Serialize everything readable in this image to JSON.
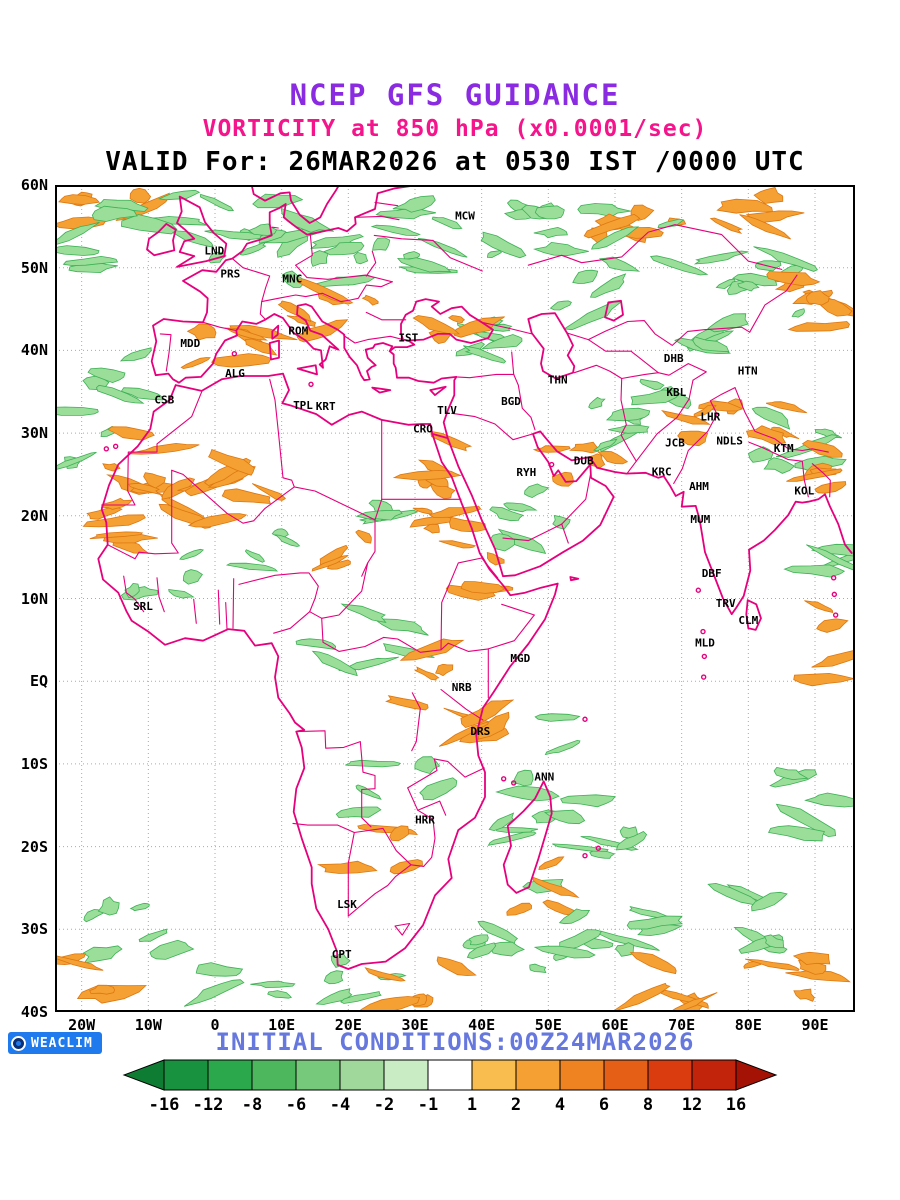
{
  "header": {
    "line1": "NCEP GFS GUIDANCE",
    "line2": "VORTICITY at 850 hPa (x0.0001/sec)",
    "line3": "VALID For: 26MAR2026 at 0530 IST /0000 UTC"
  },
  "footer": {
    "badge": "WEACLIM",
    "initial_conditions": "INITIAL CONDITIONS:00Z24MAR2026"
  },
  "colors": {
    "title_purple": "#8a2be2",
    "title_magenta": "#f5148c",
    "map_line_magenta": "#e6007e",
    "green_fill": "#9ade9a",
    "green_edge": "#3cb054",
    "orange_fill": "#f5a033",
    "orange_edge": "#dd7711",
    "grid_gray": "#aaaaaa",
    "initial_blue": "#6677dd",
    "badge_blue": "#1f7aed"
  },
  "map": {
    "lat_labels": [
      "60N",
      "50N",
      "40N",
      "30N",
      "20N",
      "10N",
      "EQ",
      "10S",
      "20S",
      "30S",
      "40S"
    ],
    "lon_labels": [
      "20W",
      "10W",
      "0",
      "10E",
      "20E",
      "30E",
      "40E",
      "50E",
      "60E",
      "70E",
      "80E",
      "90E"
    ],
    "cities": [
      {
        "c": "MCW",
        "lon": 37.5,
        "lat": 55.8
      },
      {
        "c": "LND",
        "lon": -0.1,
        "lat": 51.6
      },
      {
        "c": "PRS",
        "lon": 2.3,
        "lat": 48.8
      },
      {
        "c": "MNC",
        "lon": 11.6,
        "lat": 48.2
      },
      {
        "c": "ROM",
        "lon": 12.5,
        "lat": 41.9
      },
      {
        "c": "IST",
        "lon": 29.0,
        "lat": 41.1
      },
      {
        "c": "MDD",
        "lon": -3.7,
        "lat": 40.4
      },
      {
        "c": "ALG",
        "lon": 3.0,
        "lat": 36.8
      },
      {
        "c": "CSB",
        "lon": -7.6,
        "lat": 33.6
      },
      {
        "c": "TPL",
        "lon": 13.2,
        "lat": 32.9
      },
      {
        "c": "KRT",
        "lon": 16.6,
        "lat": 32.8
      },
      {
        "c": "TLV",
        "lon": 34.8,
        "lat": 32.3
      },
      {
        "c": "CRO",
        "lon": 31.2,
        "lat": 30.1
      },
      {
        "c": "BGD",
        "lon": 44.4,
        "lat": 33.4
      },
      {
        "c": "THN",
        "lon": 51.4,
        "lat": 36.0
      },
      {
        "c": "DHB",
        "lon": 68.8,
        "lat": 38.6
      },
      {
        "c": "HTN",
        "lon": 79.9,
        "lat": 37.1
      },
      {
        "c": "KBL",
        "lon": 69.2,
        "lat": 34.5
      },
      {
        "c": "LHR",
        "lon": 74.3,
        "lat": 31.5
      },
      {
        "c": "JCB",
        "lon": 69.0,
        "lat": 28.4
      },
      {
        "c": "NDLS",
        "lon": 77.2,
        "lat": 28.6
      },
      {
        "c": "KTM",
        "lon": 85.3,
        "lat": 27.7
      },
      {
        "c": "KRC",
        "lon": 67.0,
        "lat": 24.9
      },
      {
        "c": "AHM",
        "lon": 72.6,
        "lat": 23.1
      },
      {
        "c": "MUM",
        "lon": 72.8,
        "lat": 19.1
      },
      {
        "c": "KOL",
        "lon": 88.4,
        "lat": 22.6
      },
      {
        "c": "DBF",
        "lon": 74.5,
        "lat": 12.6
      },
      {
        "c": "TRV",
        "lon": 76.6,
        "lat": 9.0
      },
      {
        "c": "CLM",
        "lon": 80.0,
        "lat": 6.9
      },
      {
        "c": "MLD",
        "lon": 73.5,
        "lat": 4.2
      },
      {
        "c": "DUB",
        "lon": 55.3,
        "lat": 26.2
      },
      {
        "c": "RYH",
        "lon": 46.7,
        "lat": 24.8
      },
      {
        "c": "SRL",
        "lon": -10.8,
        "lat": 8.6
      },
      {
        "c": "MGD",
        "lon": 45.8,
        "lat": 2.3
      },
      {
        "c": "NRB",
        "lon": 37.0,
        "lat": -1.2
      },
      {
        "c": "DRS",
        "lon": 39.8,
        "lat": -6.5
      },
      {
        "c": "ANN",
        "lon": 49.4,
        "lat": -12.0
      },
      {
        "c": "HRR",
        "lon": 31.5,
        "lat": -17.2
      },
      {
        "c": "LSK",
        "lon": 19.8,
        "lat": -27.4
      },
      {
        "c": "CPT",
        "lon": 19.0,
        "lat": -33.5
      }
    ]
  },
  "colorbar": {
    "tick_labels": [
      "-16",
      "-12",
      "-8",
      "-6",
      "-4",
      "-2",
      "-1",
      "1",
      "2",
      "4",
      "6",
      "8",
      "12",
      "16"
    ],
    "segment_colors": [
      "#0e7d33",
      "#18923f",
      "#2ba74c",
      "#4db75e",
      "#76c87a",
      "#9fd89a",
      "#c9ecc4",
      "#ffffff",
      "#f8bd4e",
      "#f5a033",
      "#ef8221",
      "#e65f17",
      "#da3c10",
      "#c2230b",
      "#a31205"
    ]
  },
  "vorticity_features": [
    [
      -15,
      57,
      8,
      2.5,
      6,
      "o"
    ],
    [
      -20,
      51,
      4,
      4,
      4,
      "g"
    ],
    [
      -8,
      56,
      8,
      3,
      6,
      "g"
    ],
    [
      2,
      54,
      9,
      4,
      8,
      "g"
    ],
    [
      14,
      52,
      8,
      4,
      7,
      "g"
    ],
    [
      26,
      53,
      9,
      4,
      8,
      "g"
    ],
    [
      38,
      54,
      9,
      4,
      7,
      "g"
    ],
    [
      52,
      55,
      8,
      3,
      6,
      "g"
    ],
    [
      63,
      56,
      8,
      2.5,
      6,
      "o"
    ],
    [
      75,
      57,
      9,
      2.5,
      6,
      "o"
    ],
    [
      68,
      52,
      9,
      4,
      6,
      "g"
    ],
    [
      84,
      51,
      7,
      4,
      6,
      "g"
    ],
    [
      88,
      45,
      6,
      4,
      7,
      "o"
    ],
    [
      80,
      43,
      8,
      3,
      6,
      "g"
    ],
    [
      57,
      46,
      6,
      3,
      4,
      "g"
    ],
    [
      44,
      42,
      8,
      3,
      7,
      "g"
    ],
    [
      34,
      44,
      6,
      3,
      4,
      "o"
    ],
    [
      20,
      45,
      6,
      3,
      4,
      "o"
    ],
    [
      10,
      44,
      5,
      3,
      4,
      "o"
    ],
    [
      0,
      41,
      7,
      3,
      5,
      "o"
    ],
    [
      -14,
      37,
      5,
      4,
      5,
      "g"
    ],
    [
      -19,
      30,
      4,
      4,
      4,
      "g"
    ],
    [
      -11,
      27,
      5,
      4,
      6,
      "o"
    ],
    [
      -13,
      20,
      5,
      4,
      6,
      "o"
    ],
    [
      -4,
      21,
      7,
      4,
      8,
      "o"
    ],
    [
      5,
      24,
      5,
      3,
      4,
      "o"
    ],
    [
      -8,
      13,
      7,
      3,
      5,
      "g"
    ],
    [
      8,
      15,
      6,
      3,
      4,
      "g"
    ],
    [
      20,
      17,
      5,
      3,
      4,
      "o"
    ],
    [
      28,
      20,
      4,
      3,
      4,
      "g"
    ],
    [
      33,
      25,
      4,
      5,
      7,
      "o"
    ],
    [
      35,
      17,
      4,
      4,
      5,
      "o"
    ],
    [
      42,
      13,
      4,
      3,
      4,
      "o"
    ],
    [
      48,
      19,
      5,
      4,
      6,
      "g"
    ],
    [
      55,
      27,
      5,
      3,
      5,
      "o"
    ],
    [
      60,
      31,
      5,
      3,
      5,
      "g"
    ],
    [
      66,
      35,
      5,
      3,
      4,
      "g"
    ],
    [
      78,
      32,
      8,
      2.5,
      8,
      "o"
    ],
    [
      86,
      29,
      6,
      3,
      6,
      "g"
    ],
    [
      91,
      24,
      4,
      4,
      5,
      "o"
    ],
    [
      92,
      14,
      3,
      5,
      4,
      "g"
    ],
    [
      92,
      4,
      3,
      5,
      4,
      "o"
    ],
    [
      22,
      6,
      8,
      5,
      6,
      "g"
    ],
    [
      30,
      0,
      5,
      4,
      4,
      "o"
    ],
    [
      38,
      -6,
      4,
      5,
      5,
      "o"
    ],
    [
      28,
      -12,
      7,
      4,
      5,
      "g"
    ],
    [
      24,
      -20,
      6,
      4,
      4,
      "o"
    ],
    [
      45,
      -17,
      4,
      4,
      4,
      "g"
    ],
    [
      55,
      -20,
      6,
      5,
      5,
      "g"
    ],
    [
      49,
      -26,
      5,
      4,
      4,
      "o"
    ],
    [
      -12,
      -30,
      7,
      5,
      6,
      "g"
    ],
    [
      -18,
      -36,
      5,
      3,
      4,
      "o"
    ],
    [
      5,
      -38,
      7,
      3,
      4,
      "g"
    ],
    [
      20,
      -36,
      7,
      3,
      5,
      "g"
    ],
    [
      30,
      -36,
      6,
      3,
      5,
      "o"
    ],
    [
      45,
      -33,
      8,
      4,
      6,
      "g"
    ],
    [
      60,
      -30,
      9,
      5,
      8,
      "g"
    ],
    [
      75,
      -28,
      9,
      5,
      8,
      "g"
    ],
    [
      65,
      -37,
      9,
      3,
      6,
      "o"
    ],
    [
      85,
      -35,
      7,
      3,
      6,
      "o"
    ],
    [
      90,
      -15,
      4,
      6,
      5,
      "g"
    ],
    [
      50,
      -8,
      4,
      4,
      3,
      "g"
    ],
    [
      60,
      -18,
      5,
      4,
      4,
      "g"
    ]
  ]
}
